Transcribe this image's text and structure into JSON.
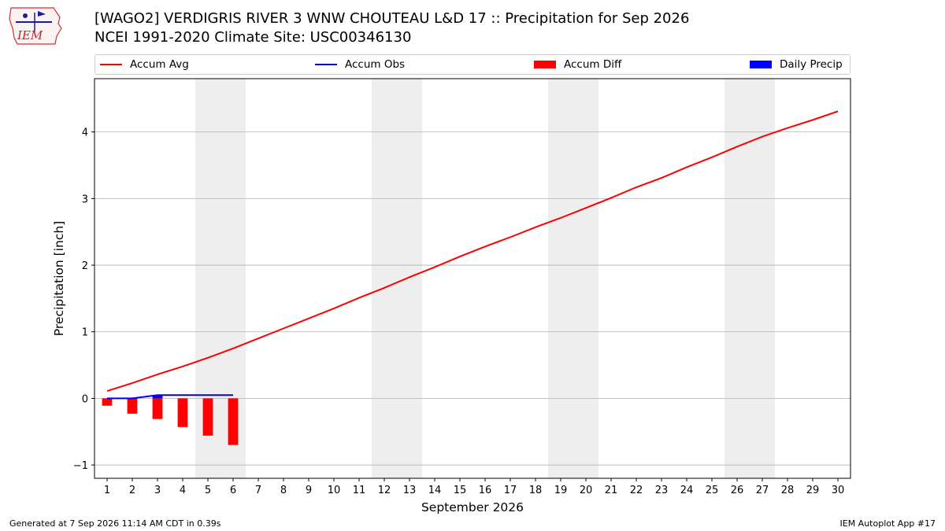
{
  "logo": {
    "text": "IEM"
  },
  "header": {
    "title": "[WAGO2] VERDIGRIS RIVER 3 WNW CHOUTEAU L&D 17 :: Precipitation for Sep 2026",
    "subtitle": "NCEI 1991-2020 Climate Site: USC00346130"
  },
  "footer": {
    "left": "Generated at 7 Sep 2026 11:14 AM CDT in 0.39s",
    "right": "IEM Autoplot App #17"
  },
  "chart_data": {
    "type": "bar",
    "xlabel": "September 2026",
    "ylabel": "Precipitation [inch]",
    "xlim": [
      0.5,
      30.5
    ],
    "ylim": [
      -1.2,
      4.8
    ],
    "yticks": [
      -1,
      0,
      1,
      2,
      3,
      4
    ],
    "xticks": [
      1,
      2,
      3,
      4,
      5,
      6,
      7,
      8,
      9,
      10,
      11,
      12,
      13,
      14,
      15,
      16,
      17,
      18,
      19,
      20,
      21,
      22,
      23,
      24,
      25,
      26,
      27,
      28,
      29,
      30
    ],
    "grid": "horizontal",
    "legend_position": "top",
    "weekend_shading": [
      [
        4.5,
        6.5
      ],
      [
        11.5,
        13.5
      ],
      [
        18.5,
        20.5
      ],
      [
        25.5,
        27.5
      ]
    ],
    "colors": {
      "accum_avg": "#ff0000",
      "accum_obs": "#0000ff",
      "accum_diff": "#ff0000",
      "daily_precip": "#0000ff",
      "shade": "#eeeeee",
      "grid": "#b0b0b0"
    },
    "legend": [
      "Accum Avg",
      "Accum Obs",
      "Accum Diff",
      "Daily Precip"
    ],
    "accum_avg": {
      "days": [
        1,
        2,
        3,
        4,
        5,
        6,
        7,
        8,
        9,
        10,
        11,
        12,
        13,
        14,
        15,
        16,
        17,
        18,
        19,
        20,
        21,
        22,
        23,
        24,
        25,
        26,
        27,
        28,
        29,
        30
      ],
      "values": [
        0.11,
        0.23,
        0.36,
        0.48,
        0.61,
        0.75,
        0.9,
        1.05,
        1.2,
        1.35,
        1.51,
        1.66,
        1.82,
        1.97,
        2.13,
        2.28,
        2.42,
        2.57,
        2.71,
        2.86,
        3.01,
        3.17,
        3.31,
        3.47,
        3.62,
        3.78,
        3.93,
        4.06,
        4.18,
        4.31
      ]
    },
    "accum_obs": {
      "days": [
        1,
        2,
        3,
        4,
        5,
        6
      ],
      "values": [
        0.0,
        0.0,
        0.05,
        0.05,
        0.05,
        0.05
      ]
    },
    "accum_diff": {
      "days": [
        1,
        2,
        3,
        4,
        5,
        6
      ],
      "values": [
        -0.11,
        -0.23,
        -0.31,
        -0.43,
        -0.56,
        -0.7
      ]
    },
    "daily_precip": {
      "days": [
        3
      ],
      "values": [
        0.05
      ]
    }
  }
}
